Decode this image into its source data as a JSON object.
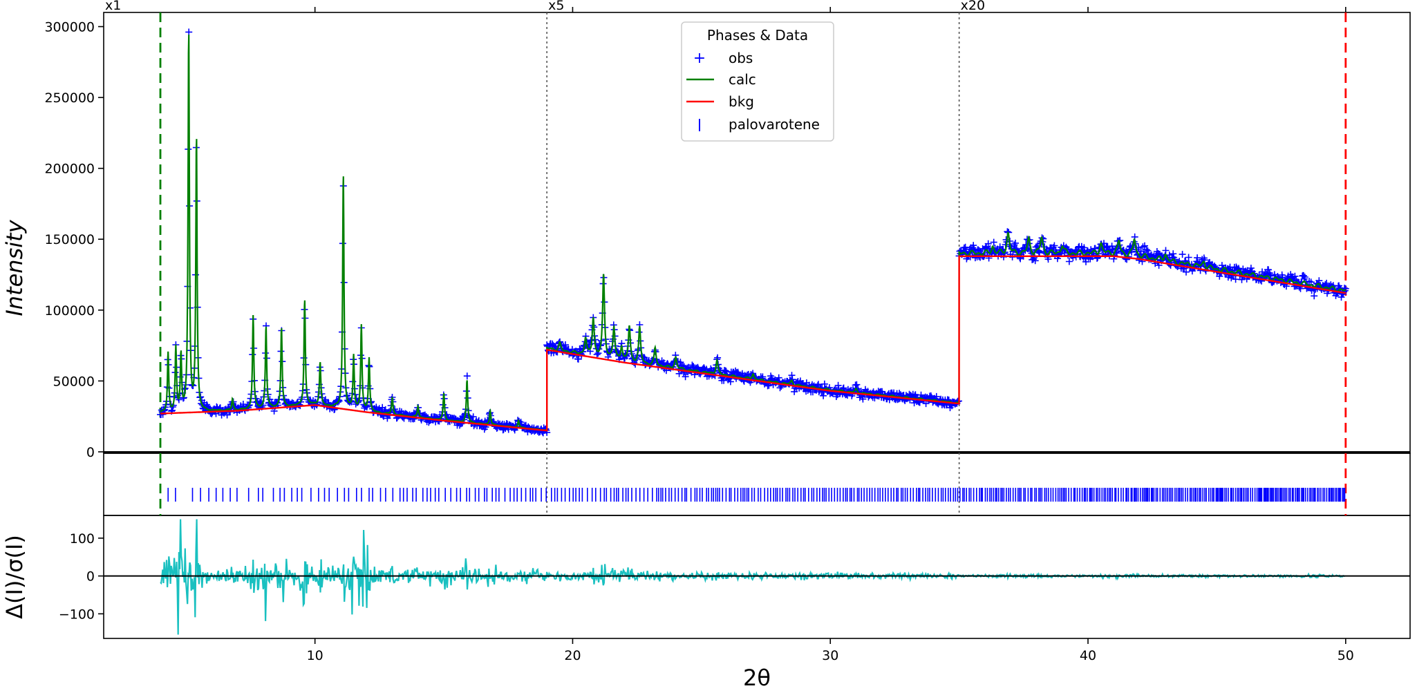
{
  "chart_data": {
    "type": "line",
    "xlabel": "2θ",
    "x_range": [
      1.8,
      52.5
    ],
    "x_ticks": [
      10,
      20,
      30,
      40,
      50
    ],
    "top_panel": {
      "ylabel": "Intensity",
      "y_range": [
        -1000,
        310000
      ],
      "y_ticks": [
        0,
        50000,
        100000,
        150000,
        200000,
        250000,
        300000
      ],
      "scale_markers": [
        {
          "x": 1.8,
          "label": "x1"
        },
        {
          "x": 19.0,
          "label": "x5"
        },
        {
          "x": 35.0,
          "label": "x20"
        }
      ],
      "region_limits": {
        "low": 4.0,
        "high": 50.0
      },
      "segments": [
        {
          "x_range": [
            4.0,
            19.0
          ],
          "bkg_points": [
            [
              4.0,
              27000
            ],
            [
              7.0,
              29000
            ],
            [
              10.0,
              33000
            ],
            [
              12.0,
              28000
            ],
            [
              15.0,
              22000
            ],
            [
              19.0,
              15000
            ]
          ],
          "peaks": [
            {
              "x": 4.3,
              "h": 42000
            },
            {
              "x": 4.6,
              "h": 45000
            },
            {
              "x": 4.8,
              "h": 40000
            },
            {
              "x": 5.1,
              "h": 268000
            },
            {
              "x": 5.4,
              "h": 193000
            },
            {
              "x": 6.8,
              "h": 8000
            },
            {
              "x": 7.6,
              "h": 66000
            },
            {
              "x": 8.1,
              "h": 58000
            },
            {
              "x": 8.7,
              "h": 56000
            },
            {
              "x": 9.6,
              "h": 75000
            },
            {
              "x": 10.2,
              "h": 30000
            },
            {
              "x": 11.1,
              "h": 166000
            },
            {
              "x": 11.5,
              "h": 38000
            },
            {
              "x": 11.8,
              "h": 60000
            },
            {
              "x": 12.1,
              "h": 38000
            },
            {
              "x": 13.0,
              "h": 12000
            },
            {
              "x": 14.0,
              "h": 8000
            },
            {
              "x": 15.0,
              "h": 19000
            },
            {
              "x": 15.9,
              "h": 30000
            },
            {
              "x": 16.8,
              "h": 10000
            },
            {
              "x": 17.9,
              "h": 5000
            }
          ]
        },
        {
          "x_range": [
            19.0,
            35.0
          ],
          "bkg_points": [
            [
              19.0,
              72000
            ],
            [
              22.0,
              63000
            ],
            [
              26.0,
              53000
            ],
            [
              30.0,
              43000
            ],
            [
              35.0,
              34000
            ]
          ],
          "peaks": [
            {
              "x": 19.5,
              "h": 5000
            },
            {
              "x": 20.5,
              "h": 12000
            },
            {
              "x": 20.8,
              "h": 27000
            },
            {
              "x": 21.2,
              "h": 58000
            },
            {
              "x": 21.6,
              "h": 22000
            },
            {
              "x": 21.9,
              "h": 10000
            },
            {
              "x": 22.2,
              "h": 25000
            },
            {
              "x": 22.6,
              "h": 25000
            },
            {
              "x": 23.2,
              "h": 12000
            },
            {
              "x": 24.0,
              "h": 8000
            },
            {
              "x": 25.6,
              "h": 10000
            },
            {
              "x": 27.0,
              "h": 4000
            },
            {
              "x": 28.5,
              "h": 3000
            },
            {
              "x": 31.0,
              "h": 2500
            }
          ]
        },
        {
          "x_range": [
            35.0,
            50.0
          ],
          "bkg_points": [
            [
              35.0,
              138000
            ],
            [
              38.0,
              138000
            ],
            [
              41.0,
              138000
            ],
            [
              42.0,
              136000
            ],
            [
              46.0,
              124000
            ],
            [
              50.0,
              112000
            ]
          ],
          "peaks": [
            {
              "x": 36.3,
              "h": 5000
            },
            {
              "x": 36.9,
              "h": 14000
            },
            {
              "x": 37.7,
              "h": 10000
            },
            {
              "x": 38.2,
              "h": 11000
            },
            {
              "x": 39.0,
              "h": 6000
            },
            {
              "x": 40.5,
              "h": 7000
            },
            {
              "x": 41.2,
              "h": 9000
            },
            {
              "x": 41.8,
              "h": 12000
            },
            {
              "x": 43.0,
              "h": 5000
            },
            {
              "x": 44.5,
              "h": 4000
            }
          ]
        }
      ]
    },
    "reflection_panel": {
      "phase": "palovarotene",
      "start": 4.3,
      "end": 50.0
    },
    "residual_panel": {
      "ylabel": "Δ(I)/σ(I)",
      "y_range": [
        -165,
        160
      ],
      "y_ticks": [
        -100,
        0,
        100
      ]
    },
    "legend": {
      "title": "Phases & Data",
      "placement": "top-center",
      "entries": [
        {
          "label": "obs",
          "marker": "+",
          "color": "#0000ff"
        },
        {
          "label": "calc",
          "marker": "line",
          "color": "#008000"
        },
        {
          "label": "bkg",
          "marker": "line",
          "color": "#ff0000"
        },
        {
          "label": "palovarotene",
          "marker": "|",
          "color": "#0000ff"
        }
      ]
    },
    "colors": {
      "obs": "#0000ff",
      "calc": "#008000",
      "bkg": "#ff0000",
      "diff": "#19c0c0",
      "low_limit": "#008000",
      "high_limit": "#ff0000",
      "tick": "#0000ff"
    }
  }
}
